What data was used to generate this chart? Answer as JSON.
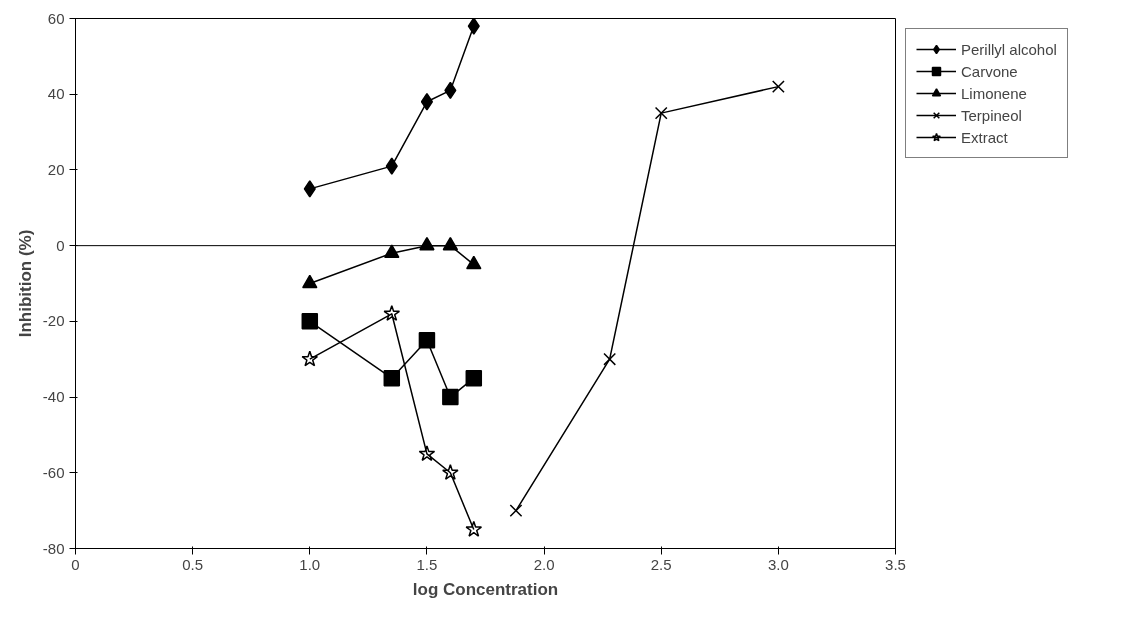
{
  "chart_data": {
    "type": "line",
    "xlabel": "log Concentration",
    "ylabel": "Inhibition (%)",
    "xlim": [
      0,
      3.5
    ],
    "ylim": [
      -80,
      60
    ],
    "xticks": [
      0,
      0.5,
      {
        "value": 1,
        "label": "1.0"
      },
      1.5,
      {
        "value": 2,
        "label": "2.0"
      },
      2.5,
      {
        "value": 3,
        "label": "3.0"
      },
      3.5
    ],
    "yticks": [
      -80,
      -60,
      -40,
      -20,
      0,
      20,
      40,
      60
    ],
    "grid": false,
    "ref_lines": [
      {
        "axis": "y",
        "value": 0,
        "color": "#000000"
      }
    ],
    "legend": "right",
    "line_style": "solid",
    "series": [
      {
        "name": "Perillyl alcohol",
        "color": "#000000",
        "marker": "diamond",
        "x": [
          1.0,
          1.35,
          1.5,
          1.6,
          1.7
        ],
        "values": [
          15,
          21,
          38,
          41,
          58
        ]
      },
      {
        "name": "Carvone",
        "color": "#000000",
        "marker": "square",
        "x": [
          1.0,
          1.35,
          1.5,
          1.6,
          1.7
        ],
        "values": [
          -20,
          -35,
          -25,
          -40,
          -35
        ]
      },
      {
        "name": "Limonene",
        "color": "#000000",
        "marker": "triangle",
        "x": [
          1.0,
          1.35,
          1.5,
          1.6,
          1.7
        ],
        "values": [
          -10,
          -2,
          0,
          0,
          -5
        ]
      },
      {
        "name": "Terpineol",
        "color": "#000000",
        "marker": "cross",
        "x": [
          1.88,
          2.28,
          2.5,
          3.0
        ],
        "values": [
          -70,
          -30,
          35,
          42
        ]
      },
      {
        "name": "Extract",
        "color": "#000000",
        "marker": "star",
        "x": [
          1.0,
          1.35,
          1.5,
          1.6,
          1.7
        ],
        "values": [
          -30,
          -18,
          -55,
          -60,
          -75
        ]
      }
    ]
  }
}
